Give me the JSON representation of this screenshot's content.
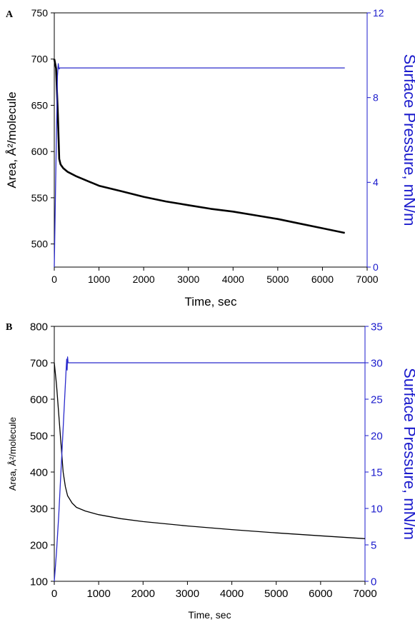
{
  "chart_data": [
    {
      "panel": "A",
      "type": "line",
      "xlabel": "Time, sec",
      "ylabel_left": "Area, Å²/molecule",
      "ylabel_right": "Surface Pressure, mN/m",
      "xlim": [
        0,
        7000
      ],
      "xticks": [
        0,
        1000,
        2000,
        3000,
        4000,
        5000,
        6000,
        7000
      ],
      "ylim_left": [
        475,
        750
      ],
      "yticks_left": [
        500,
        550,
        600,
        650,
        700,
        750
      ],
      "ylim_right": [
        0,
        12
      ],
      "yticks_right": [
        0,
        4,
        8,
        12
      ],
      "grid": false,
      "colors": {
        "area": "#000000",
        "pressure": "#2a2acc",
        "right_axis": "#1a1acc"
      },
      "series": [
        {
          "axis": "left",
          "x": [
            0,
            40,
            80,
            110,
            140,
            200,
            300,
            500,
            800,
            1000,
            1500,
            2000,
            2500,
            3000,
            3500,
            4000,
            4500,
            5000,
            5500,
            6000,
            6500
          ],
          "y": [
            700,
            690,
            640,
            592,
            586,
            582,
            578,
            573,
            567,
            563,
            557,
            551,
            546,
            542,
            538,
            535,
            531,
            527,
            522,
            517,
            512
          ]
        },
        {
          "axis": "right",
          "x": [
            0,
            30,
            70,
            90,
            100,
            110,
            120,
            6500
          ],
          "y": [
            0,
            4,
            9.0,
            9.6,
            9.4,
            9.35,
            9.4,
            9.4
          ]
        }
      ]
    },
    {
      "panel": "B",
      "type": "line",
      "xlabel": "Time, sec",
      "ylabel_left": "Area, Å²/molecule",
      "ylabel_right": "Surface Pressure, mN/m",
      "xlim": [
        0,
        7000
      ],
      "xticks": [
        0,
        1000,
        2000,
        3000,
        4000,
        5000,
        6000,
        7000
      ],
      "ylim_left": [
        100,
        800
      ],
      "yticks_left": [
        100,
        200,
        300,
        400,
        500,
        600,
        700,
        800
      ],
      "ylim_right": [
        0,
        35
      ],
      "yticks_right": [
        0,
        5,
        10,
        15,
        20,
        25,
        30,
        35
      ],
      "grid": false,
      "colors": {
        "area": "#000000",
        "pressure": "#2a2acc",
        "right_axis": "#1a1acc"
      },
      "series": [
        {
          "axis": "left",
          "x": [
            0,
            50,
            100,
            150,
            200,
            250,
            300,
            400,
            500,
            700,
            1000,
            1500,
            2000,
            3000,
            4000,
            5000,
            6000,
            7000
          ],
          "y": [
            700,
            640,
            560,
            480,
            400,
            360,
            335,
            315,
            303,
            293,
            283,
            272,
            264,
            252,
            242,
            233,
            225,
            217
          ]
        },
        {
          "axis": "right",
          "x": [
            0,
            50,
            100,
            150,
            200,
            250,
            270,
            280,
            290,
            300,
            310,
            7000
          ],
          "y": [
            0,
            4,
            9,
            15,
            21,
            27,
            29.5,
            30.5,
            29,
            30.8,
            30,
            30
          ]
        }
      ]
    }
  ]
}
